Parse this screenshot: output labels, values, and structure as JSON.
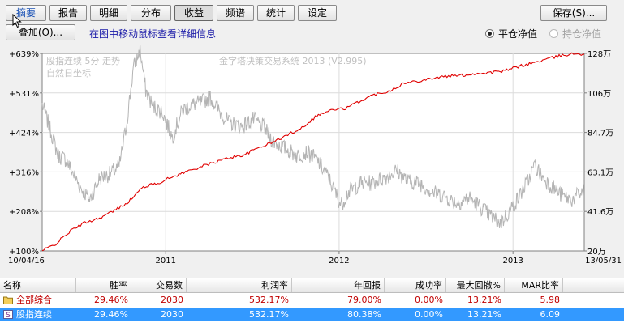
{
  "tabs": [
    "摘要",
    "报告",
    "明细",
    "分布",
    "收益",
    "频谱",
    "统计",
    "设定"
  ],
  "active_tab": "收益",
  "save_label": "保存(S)...",
  "overlay_label": "叠加(O)...",
  "hint_text": "在图中移动鼠标查看详细信息",
  "radio_options": [
    {
      "label": "平仓净值",
      "checked": true,
      "enabled": true
    },
    {
      "label": "持仓净值",
      "checked": false,
      "enabled": false
    }
  ],
  "chart_data": {
    "type": "line",
    "watermark_left_1": "股指连续 5分 走势",
    "watermark_left_2": "自然日坐标",
    "watermark_center": "金字塔决策交易系统 2013 (V2.995)",
    "left_axis_labels": [
      "+639%",
      "+531%",
      "+424%",
      "+316%",
      "+208%",
      "+100%"
    ],
    "right_axis_labels": [
      "128万",
      "106万",
      "84.7万",
      "63.1万",
      "41.6万",
      "20万"
    ],
    "x_tick_labels": [
      "10/04/16",
      "2011",
      "2012",
      "2013",
      "13/05/31"
    ],
    "x_range": [
      "2010-04-16",
      "2013-05-31"
    ],
    "equity_curve": {
      "name": "收益",
      "color": "#e00000",
      "points": [
        [
          "2010-04-16",
          20.0
        ],
        [
          "2010-05-15",
          24.0
        ],
        [
          "2010-06-15",
          31.0
        ],
        [
          "2010-07-15",
          35.5
        ],
        [
          "2010-08-15",
          38.0
        ],
        [
          "2010-09-15",
          42.0
        ],
        [
          "2010-10-15",
          47.0
        ],
        [
          "2010-11-15",
          55.0
        ],
        [
          "2010-12-15",
          57.0
        ],
        [
          "2011-01-15",
          60.5
        ],
        [
          "2011-02-15",
          63.5
        ],
        [
          "2011-03-15",
          66.0
        ],
        [
          "2011-04-15",
          68.5
        ],
        [
          "2011-05-15",
          71.0
        ],
        [
          "2011-06-15",
          72.5
        ],
        [
          "2011-07-15",
          76.5
        ],
        [
          "2011-08-15",
          79.5
        ],
        [
          "2011-09-15",
          83.5
        ],
        [
          "2011-10-15",
          87.5
        ],
        [
          "2011-11-15",
          94.0
        ],
        [
          "2011-12-15",
          97.0
        ],
        [
          "2012-01-15",
          98.0
        ],
        [
          "2012-02-15",
          102.0
        ],
        [
          "2012-03-15",
          105.5
        ],
        [
          "2012-04-15",
          107.5
        ],
        [
          "2012-05-15",
          111.5
        ],
        [
          "2012-06-15",
          113.0
        ],
        [
          "2012-07-15",
          114.5
        ],
        [
          "2012-08-15",
          115.5
        ],
        [
          "2012-09-15",
          116.0
        ],
        [
          "2012-10-15",
          117.0
        ],
        [
          "2012-11-15",
          117.5
        ],
        [
          "2012-12-15",
          118.5
        ],
        [
          "2013-01-15",
          121.0
        ],
        [
          "2013-02-15",
          123.0
        ],
        [
          "2013-03-15",
          125.0
        ],
        [
          "2013-04-15",
          127.0
        ],
        [
          "2013-05-15",
          128.0
        ],
        [
          "2013-05-31",
          127.5
        ]
      ]
    },
    "price_curve": {
      "name": "股指连续",
      "color": "#b4b4b4",
      "points": [
        [
          "2010-04-16",
          100.0
        ],
        [
          "2010-05-01",
          88.0
        ],
        [
          "2010-05-20",
          72.0
        ],
        [
          "2010-06-05",
          70.0
        ],
        [
          "2010-07-05",
          55.0
        ],
        [
          "2010-07-25",
          48.0
        ],
        [
          "2010-08-15",
          60.0
        ],
        [
          "2010-09-05",
          62.0
        ],
        [
          "2010-09-25",
          66.0
        ],
        [
          "2010-10-10",
          88.0
        ],
        [
          "2010-10-25",
          120.0
        ],
        [
          "2010-11-08",
          130.0
        ],
        [
          "2010-11-20",
          108.0
        ],
        [
          "2010-12-05",
          99.0
        ],
        [
          "2010-12-25",
          96.0
        ],
        [
          "2011-01-15",
          82.0
        ],
        [
          "2011-02-05",
          97.0
        ],
        [
          "2011-02-25",
          100.0
        ],
        [
          "2011-03-15",
          101.0
        ],
        [
          "2011-04-05",
          104.0
        ],
        [
          "2011-04-25",
          96.0
        ],
        [
          "2011-05-15",
          90.0
        ],
        [
          "2011-06-10",
          88.0
        ],
        [
          "2011-07-05",
          92.0
        ],
        [
          "2011-07-25",
          88.0
        ],
        [
          "2011-08-15",
          80.0
        ],
        [
          "2011-09-10",
          76.0
        ],
        [
          "2011-10-05",
          72.0
        ],
        [
          "2011-10-25",
          74.0
        ],
        [
          "2011-11-15",
          70.0
        ],
        [
          "2011-12-10",
          60.0
        ],
        [
          "2012-01-05",
          45.0
        ],
        [
          "2012-01-20",
          52.0
        ],
        [
          "2012-02-15",
          57.0
        ],
        [
          "2012-03-10",
          57.0
        ],
        [
          "2012-04-05",
          60.0
        ],
        [
          "2012-05-01",
          64.0
        ],
        [
          "2012-05-25",
          58.0
        ],
        [
          "2012-06-20",
          57.0
        ],
        [
          "2012-07-15",
          52.0
        ],
        [
          "2012-08-10",
          50.0
        ],
        [
          "2012-09-05",
          46.0
        ],
        [
          "2012-10-01",
          49.0
        ],
        [
          "2012-10-25",
          44.0
        ],
        [
          "2012-11-20",
          38.0
        ],
        [
          "2012-12-05",
          35.0
        ],
        [
          "2012-12-20",
          40.0
        ],
        [
          "2013-01-10",
          48.0
        ],
        [
          "2013-02-05",
          60.0
        ],
        [
          "2013-02-15",
          67.0
        ],
        [
          "2013-03-05",
          60.0
        ],
        [
          "2013-03-25",
          55.0
        ],
        [
          "2013-04-15",
          50.0
        ],
        [
          "2013-05-05",
          48.0
        ],
        [
          "2013-05-31",
          53.0
        ]
      ]
    },
    "y_range_right": [
      20,
      128
    ],
    "grid": true
  },
  "table": {
    "headers": [
      "名称",
      "胜率",
      "交易数",
      "利润率",
      "年回报",
      "成功率",
      "最大回撤%",
      "MAR比率"
    ],
    "rows": [
      {
        "icon": "folder-icon",
        "name": "全部综合",
        "win_rate": "29.46%",
        "trades": "2030",
        "profit_rate": "532.17%",
        "annual_return": "79.00%",
        "success_rate": "0.00%",
        "max_drawdown": "13.21%",
        "mar": "5.98"
      },
      {
        "icon": "s-badge-icon",
        "name": "股指连续",
        "win_rate": "29.46%",
        "trades": "2030",
        "profit_rate": "532.17%",
        "annual_return": "80.38%",
        "success_rate": "0.00%",
        "max_drawdown": "13.21%",
        "mar": "6.09"
      }
    ]
  }
}
